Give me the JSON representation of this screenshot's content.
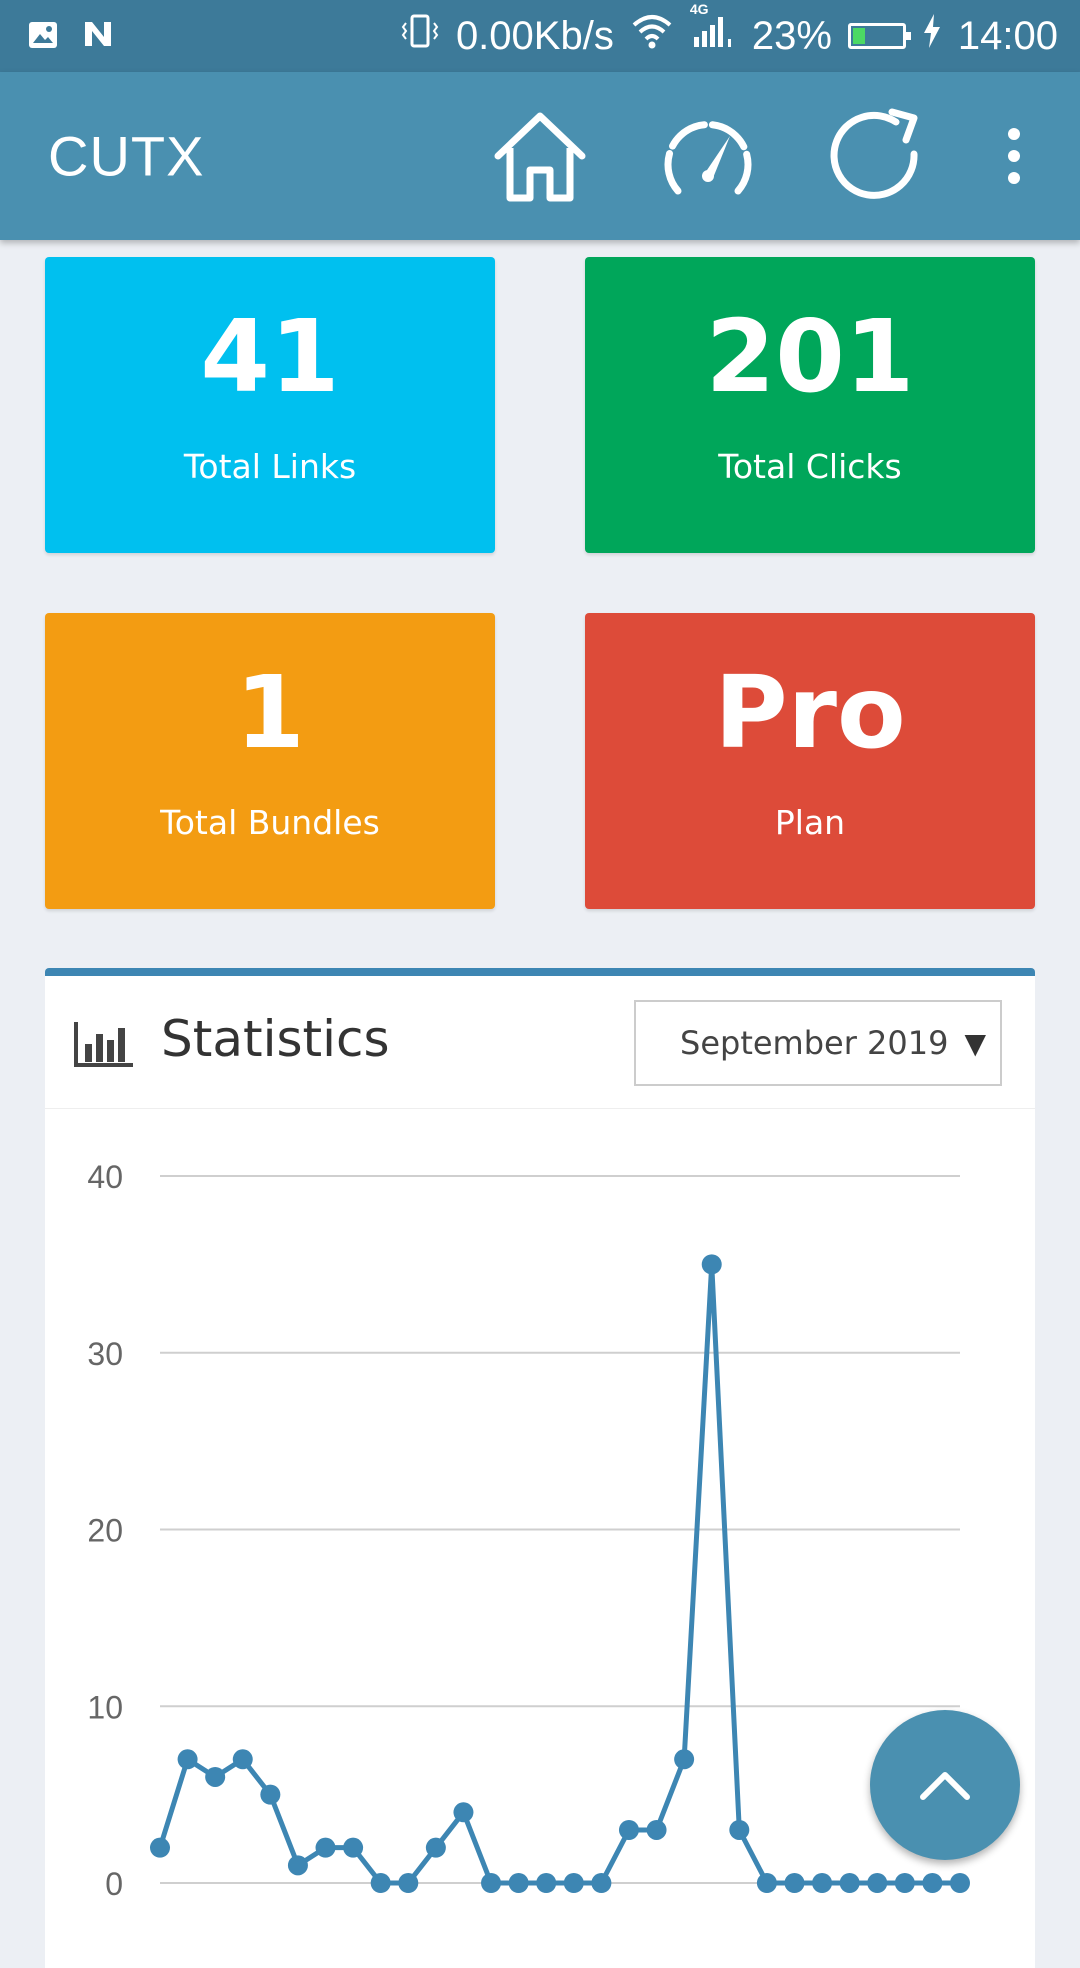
{
  "status_bar": {
    "speed": "0.00Kb/s",
    "network": "4G",
    "battery": "23%",
    "battery_level": 0.23,
    "time": "14:00"
  },
  "app_bar": {
    "title": "CUTX",
    "icons": [
      "home-icon",
      "dashboard-icon",
      "refresh-icon",
      "more-vert-icon"
    ]
  },
  "stats": [
    {
      "value": "41",
      "label": "Total Links",
      "color": "#00c0ef"
    },
    {
      "value": "201",
      "label": "Total Clicks",
      "color": "#00a65a"
    },
    {
      "value": "1",
      "label": "Total Bundles",
      "color": "#f39c12"
    },
    {
      "value": "Pro",
      "label": "Plan",
      "color": "#dd4b39"
    }
  ],
  "statistics": {
    "title": "Statistics",
    "month_select": "September 2019"
  },
  "chart_data": {
    "type": "line",
    "x": [
      1,
      2,
      3,
      4,
      5,
      6,
      7,
      8,
      9,
      10,
      11,
      12,
      13,
      14,
      15,
      16,
      17,
      18,
      19,
      20,
      21,
      22,
      23,
      24,
      25,
      26,
      27,
      28,
      29,
      30
    ],
    "series": [
      {
        "values": [
          2,
          7,
          6,
          7,
          5,
          1,
          2,
          2,
          0,
          0,
          2,
          4,
          0,
          0,
          0,
          0,
          0,
          3,
          3,
          7,
          35,
          3,
          0,
          0,
          0,
          0,
          0,
          0,
          0,
          0
        ]
      }
    ],
    "y_ticks": [
      "0",
      "10",
      "20",
      "30",
      "40"
    ],
    "ylim": [
      0,
      40
    ],
    "grid": true,
    "color": "#3d86b3"
  }
}
